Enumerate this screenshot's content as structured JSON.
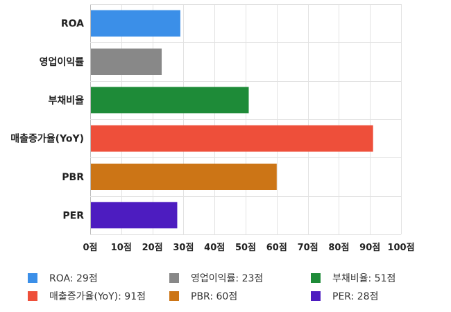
{
  "chart_data": {
    "type": "bar",
    "orientation": "horizontal",
    "categories": [
      "ROA",
      "영업이익률",
      "부채비율",
      "매출증가율(YoY)",
      "PBR",
      "PER"
    ],
    "values": [
      29,
      23,
      51,
      91,
      60,
      28
    ],
    "colors": [
      "#3b8fe8",
      "#888888",
      "#1e8b38",
      "#ee4f3a",
      "#cc7516",
      "#4d1cc0"
    ],
    "xlim": [
      0,
      100
    ],
    "xticks": [
      0,
      10,
      20,
      30,
      40,
      50,
      60,
      70,
      80,
      90,
      100
    ],
    "tick_suffix": "점",
    "grid": true,
    "legend_position": "bottom",
    "legend": [
      "ROA: 29점",
      "영업이익률: 23점",
      "부채비율: 51점",
      "매출증가율(YoY): 91점",
      "PBR: 60점",
      "PER: 28점"
    ]
  }
}
